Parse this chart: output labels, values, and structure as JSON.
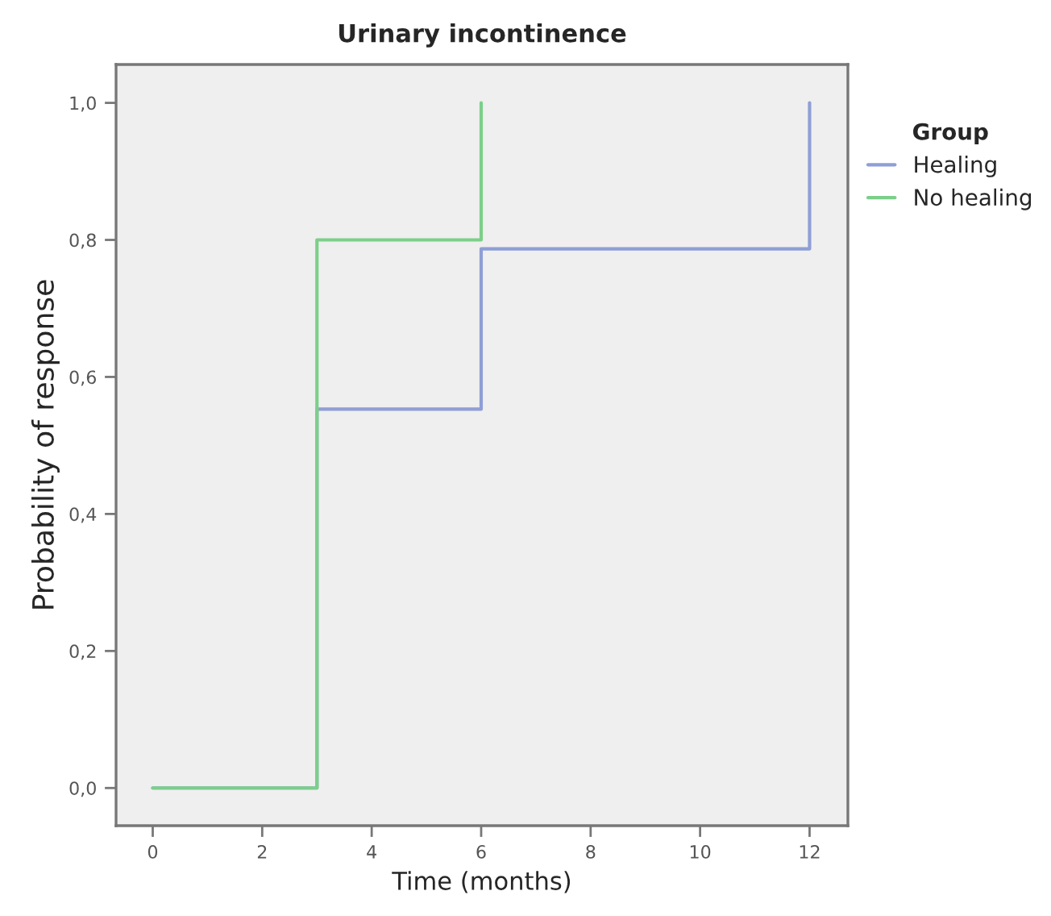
{
  "chart_data": {
    "type": "step",
    "title": "Urinary incontinence",
    "xlabel": "Time (months)",
    "ylabel": "Probability of response",
    "legend_title": "Group",
    "series": [
      {
        "name": "Healing",
        "color": "#8f9ed6",
        "x": [
          0,
          3,
          6,
          12
        ],
        "values": [
          0,
          0.553,
          0.787,
          1.0
        ]
      },
      {
        "name": "No healing",
        "color": "#7ccf8a",
        "x": [
          0,
          3,
          6
        ],
        "values": [
          0,
          0.8,
          1.0
        ]
      }
    ],
    "xlim": [
      -0.67,
      12.7
    ],
    "xticks": [
      0,
      2,
      4,
      6,
      8,
      10,
      12
    ],
    "ylim": [
      -0.055,
      1.056
    ],
    "yticks": [
      {
        "value": 0,
        "label": "0,0"
      },
      {
        "value": 0.2,
        "label": "0,2"
      },
      {
        "value": 0.4,
        "label": "0,4"
      },
      {
        "value": 0.6,
        "label": "0,6"
      },
      {
        "value": 0.8,
        "label": "0,8"
      },
      {
        "value": 1.0,
        "label": "1,0"
      }
    ],
    "grid": false,
    "legend": "top right"
  }
}
